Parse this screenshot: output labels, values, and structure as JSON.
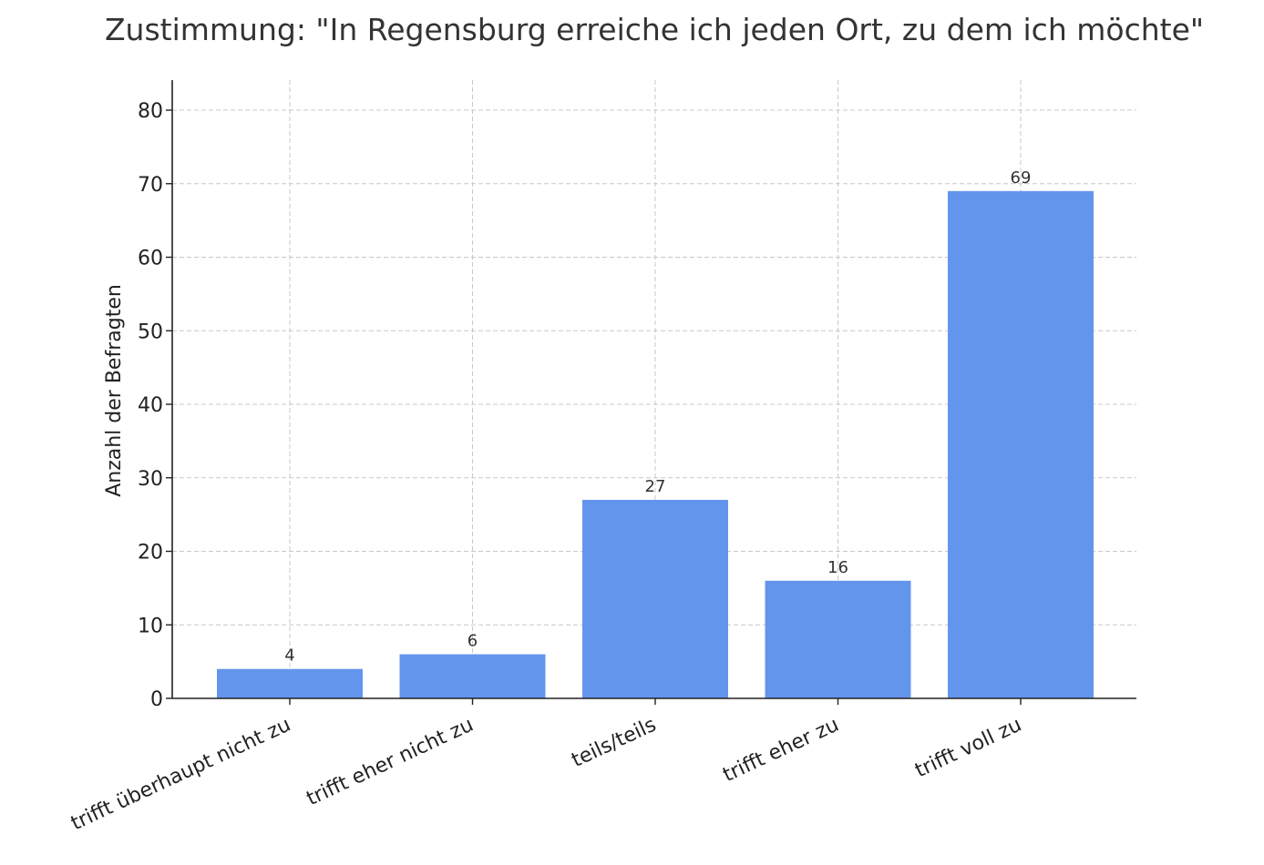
{
  "chart_data": {
    "type": "bar",
    "title": "Zustimmung: \"In Regensburg erreiche ich jeden Ort, zu dem ich möchte\"",
    "xlabel": "",
    "ylabel": "Anzahl der Befragten",
    "categories": [
      "trifft überhaupt nicht zu",
      "trifft eher nicht zu",
      "teils/teils",
      "trifft eher zu",
      "trifft voll zu"
    ],
    "values": [
      4,
      6,
      27,
      16,
      69
    ],
    "ylim": [
      0,
      84
    ],
    "yticks": [
      0,
      10,
      20,
      30,
      40,
      50,
      60,
      70,
      80
    ],
    "grid": true,
    "bar_color": "#6495ED",
    "data_labels": true
  }
}
